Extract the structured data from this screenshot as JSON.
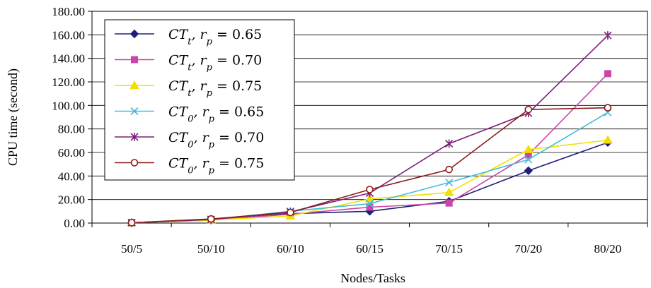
{
  "chart_data": {
    "type": "line",
    "title": "",
    "xlabel": "Nodes/Tasks",
    "ylabel": "CPU time (second)",
    "categories": [
      "50/5",
      "50/10",
      "60/10",
      "60/15",
      "70/15",
      "70/20",
      "80/20"
    ],
    "ylim": [
      0,
      180
    ],
    "yticks": [
      "0.00",
      "20.00",
      "40.00",
      "60.00",
      "80.00",
      "100.00",
      "120.00",
      "140.00",
      "160.00",
      "180.00"
    ],
    "grid": "horizontal",
    "legend_position": "top-left",
    "series": [
      {
        "name": "CTt, rp = 0.65",
        "label_base": "CT",
        "label_sub": "t",
        "label_rest": ", r",
        "label_sub2": "p",
        "label_tail": " = 0.65",
        "color": "#1f1f7a",
        "marker": "diamond",
        "values": [
          0.3,
          2.5,
          8,
          10,
          18.5,
          44.5,
          68.5
        ]
      },
      {
        "name": "CTt, rp = 0.70",
        "label_base": "CT",
        "label_sub": "t",
        "label_rest": ", r",
        "label_sub2": "p",
        "label_tail": " = 0.70",
        "color": "#cc44aa",
        "marker": "square",
        "values": [
          0.3,
          2.5,
          7.5,
          13.5,
          17,
          58,
          127
        ]
      },
      {
        "name": "CTt, rp = 0.75",
        "label_base": "CT",
        "label_sub": "t",
        "label_rest": ", r",
        "label_sub2": "p",
        "label_tail": " = 0.75",
        "color": "#f0e000",
        "marker": "triangle",
        "values": [
          0.3,
          2.5,
          6,
          20.5,
          26,
          62.5,
          70.5
        ]
      },
      {
        "name": "CT0, rp = 0.65",
        "label_base": "CT",
        "label_sub": "0",
        "label_rest": ", r",
        "label_sub2": "p",
        "label_tail": " = 0.65",
        "color": "#44bbdd",
        "marker": "x",
        "values": [
          0.3,
          3,
          10,
          16.5,
          34.5,
          54,
          94
        ]
      },
      {
        "name": "CT0, rp = 0.70",
        "label_base": "CT",
        "label_sub": "0",
        "label_rest": ", r",
        "label_sub2": "p",
        "label_tail": " = 0.70",
        "color": "#7a1f7a",
        "marker": "star",
        "values": [
          0.3,
          3,
          9.5,
          25.5,
          67.5,
          93.5,
          159.5
        ]
      },
      {
        "name": "CT0, rp = 0.75",
        "label_base": "CT",
        "label_sub": "0",
        "label_rest": ", r",
        "label_sub2": "p",
        "label_tail": " = 0.75",
        "color": "#8b1a1a",
        "marker": "circle",
        "values": [
          0.3,
          3.5,
          9,
          28.5,
          45.5,
          96.5,
          98
        ]
      }
    ]
  }
}
